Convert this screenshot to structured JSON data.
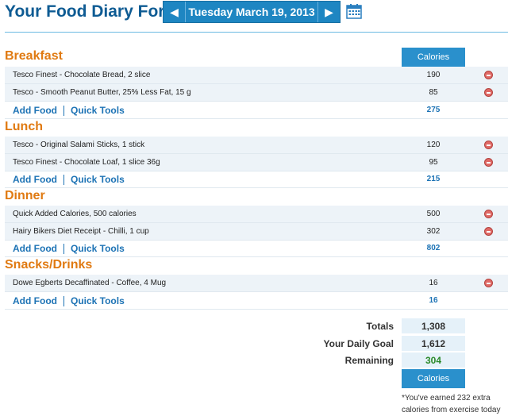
{
  "header": {
    "title": "Your Food Diary For:",
    "date": "Tuesday March 19, 2013",
    "prev_icon": "left-arrow-icon",
    "next_icon": "right-arrow-icon",
    "calendar_icon": "calendar-icon"
  },
  "columns": {
    "calories": "Calories"
  },
  "meals": [
    {
      "name": "Breakfast",
      "items": [
        {
          "name": "Tesco Finest - Chocolate Bread, 2 slice",
          "calories": "190"
        },
        {
          "name": "Tesco - Smooth Peanut Butter, 25% Less Fat, 15 g",
          "calories": "85"
        }
      ],
      "subtotal": "275"
    },
    {
      "name": "Lunch",
      "items": [
        {
          "name": "Tesco - Original Salami Sticks, 1 stick",
          "calories": "120"
        },
        {
          "name": "Tesco Finest - Chocolate Loaf, 1 slice 36g",
          "calories": "95"
        }
      ],
      "subtotal": "215"
    },
    {
      "name": "Dinner",
      "items": [
        {
          "name": "Quick Added Calories, 500 calories",
          "calories": "500"
        },
        {
          "name": "Hairy Bikers Diet Receipt - Chilli, 1 cup",
          "calories": "302"
        }
      ],
      "subtotal": "802"
    },
    {
      "name": "Snacks/Drinks",
      "items": [
        {
          "name": "Dowe Egberts Decaffinated - Coffee, 4 Mug",
          "calories": "16"
        }
      ],
      "subtotal": "16"
    }
  ],
  "actions": {
    "add_food": "Add Food",
    "quick_tools": "Quick Tools"
  },
  "totals": {
    "totals_label": "Totals",
    "totals_value": "1,308",
    "goal_label": "Your Daily Goal",
    "goal_value": "1,612",
    "remaining_label": "Remaining",
    "remaining_value": "304",
    "footer_label": "Calories"
  },
  "note": "*You've earned 232 extra calories from exercise today",
  "colors": {
    "brand_blue": "#1e86c2",
    "meal_orange": "#e07a12",
    "link_blue": "#1d73b5",
    "remaining_green": "#2b8a2b",
    "delete_red": "#e06a66"
  }
}
